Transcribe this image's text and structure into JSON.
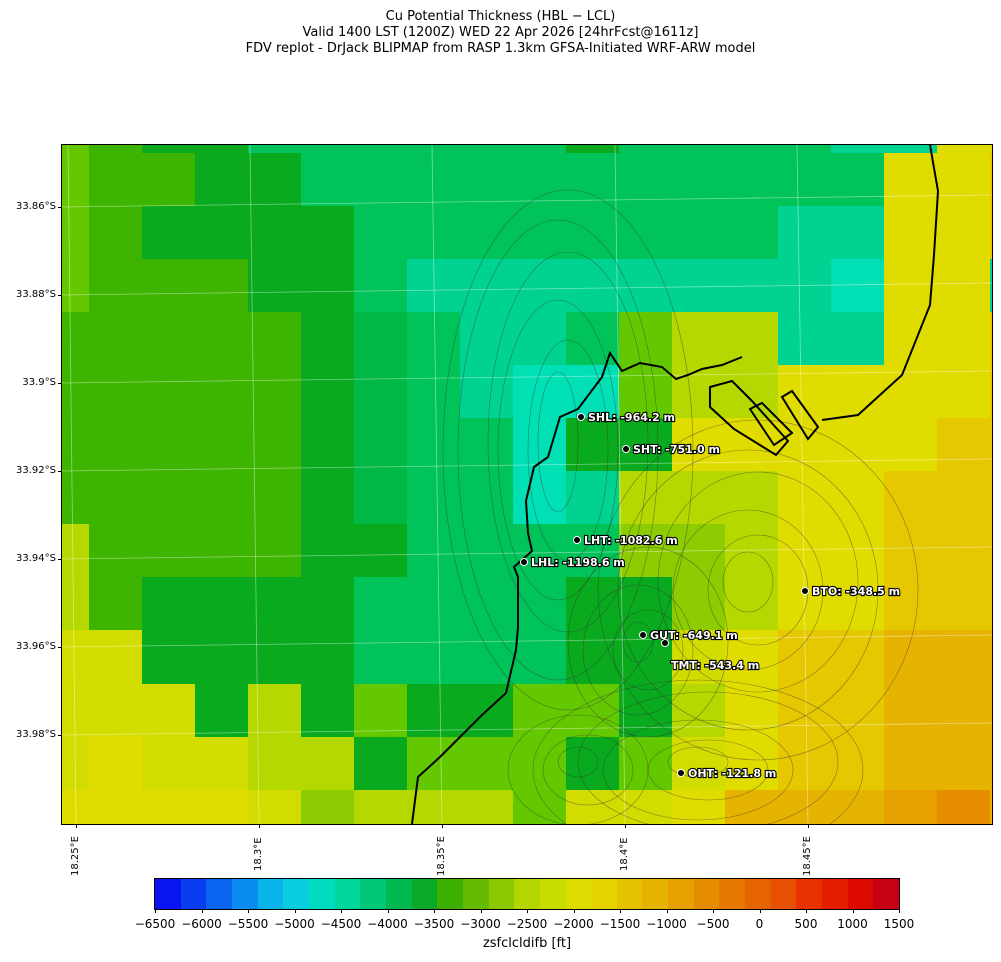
{
  "header": {
    "line1": "Cu Potential Thickness (HBL − LCL)",
    "line2": "Valid 1400 LST (1200Z) WED 22 Apr 2026 [24hrFcst@1611z]",
    "line3": "FDV replot - DrJack BLIPMAP from RASP 1.3km GFSA-Initiated WRF-ARW model"
  },
  "axes": {
    "lat_labels": [
      "33.86°S",
      "33.88°S",
      "33.9°S",
      "33.92°S",
      "33.94°S",
      "33.96°S",
      "33.98°S"
    ],
    "lon_labels": [
      "18.25°E",
      "18.3°E",
      "18.35°E",
      "18.4°E",
      "18.45°E"
    ]
  },
  "stations": [
    {
      "label": "SHL: -964.2 m"
    },
    {
      "label": "SHT: -751.0 m"
    },
    {
      "label": "LHT: -1082.6 m"
    },
    {
      "label": "LHL: -1198.6 m"
    },
    {
      "label": "BTO: -348.5 m"
    },
    {
      "label": "GUT: -649.1 m"
    },
    {
      "label": "TMT: -543.4 m"
    },
    {
      "label": "OHT: -121.8 m"
    }
  ],
  "colorbar": {
    "label": "zsfclcldifb [ft]",
    "ticks": [
      "−6500",
      "−6000",
      "−5500",
      "−5000",
      "−4500",
      "−4000",
      "−3500",
      "−3000",
      "−2500",
      "−2000",
      "−1500",
      "−1000",
      "−500",
      "0",
      "500",
      "1000",
      "1500"
    ],
    "colors": [
      "#0a14f0",
      "#0a3cf0",
      "#0a64f0",
      "#0a8cf0",
      "#0ab4e8",
      "#0acde0",
      "#00dcc0",
      "#00d79a",
      "#00c878",
      "#00b850",
      "#0aaa28",
      "#3caf00",
      "#64bb00",
      "#8cc800",
      "#b4d600",
      "#c8dc00",
      "#dcdc00",
      "#e6d200",
      "#e6c300",
      "#e6b400",
      "#e6a000",
      "#e68c00",
      "#e67800",
      "#e66400",
      "#e65000",
      "#e63200",
      "#e61e00",
      "#dc0a00",
      "#c80014"
    ]
  },
  "map_data": {
    "grid_colors": [
      [
        "#64c800",
        "#3cb400",
        "#0aaa1e",
        "#0aaa1e",
        "#00c45a",
        "#00c45a",
        "#00c45a",
        "#00c45a",
        "#00c45a",
        "#00c45a",
        "#0aaa1e",
        "#00c45a",
        "#00c45a",
        "#00c45a",
        "#00c45a",
        "#00d291",
        "#00d291",
        "#e1dc00",
        "#e1dc00"
      ],
      [
        "#64c800",
        "#3cb400",
        "#3cb400",
        "#0aaa1e",
        "#0aaa1e",
        "#00c45a",
        "#00c45a",
        "#00c45a",
        "#00c45a",
        "#00c45a",
        "#00c45a",
        "#00c45a",
        "#00c45a",
        "#00c45a",
        "#00c45a",
        "#00c45a",
        "#e1dc00",
        "#e1dc00",
        "#e6c800"
      ],
      [
        "#64c800",
        "#3cb400",
        "#0aaa1e",
        "#0aaa1e",
        "#0aaa1e",
        "#0aaa1e",
        "#00c45a",
        "#00c45a",
        "#00c45a",
        "#00c45a",
        "#00c45a",
        "#00c45a",
        "#00c45a",
        "#00c45a",
        "#00d291",
        "#00d291",
        "#e1dc00",
        "#e1dc00",
        "#e6c800"
      ],
      [
        "#64c800",
        "#3cb400",
        "#3cb400",
        "#3cb400",
        "#0aaa1e",
        "#0aaa1e",
        "#00c45a",
        "#00d291",
        "#00d291",
        "#00d291",
        "#00d291",
        "#00d291",
        "#00d291",
        "#00d291",
        "#00d291",
        "#00e0b4",
        "#e1dc00",
        "#e1dc00",
        "#00d291"
      ],
      [
        "#3cb400",
        "#3cb400",
        "#3cb400",
        "#3cb400",
        "#3cb400",
        "#0aaa1e",
        "#00b846",
        "#00c45a",
        "#00d291",
        "#00d291",
        "#00c45a",
        "#64c800",
        "#b4d800",
        "#b4d800",
        "#00d291",
        "#00d291",
        "#e1dc00",
        "#e1dc00",
        "#e6c800"
      ],
      [
        "#3cb400",
        "#3cb400",
        "#3cb400",
        "#3cb400",
        "#3cb400",
        "#0aaa1e",
        "#00b846",
        "#00c45a",
        "#00d291",
        "#00e0b4",
        "#00e0b4",
        "#64c800",
        "#b4d800",
        "#b4d800",
        "#e1dc00",
        "#e1dc00",
        "#e1dc00",
        "#e1dc00",
        "#e6c800"
      ],
      [
        "#3cb400",
        "#3cb400",
        "#3cb400",
        "#3cb400",
        "#3cb400",
        "#0aaa1e",
        "#00b846",
        "#00c45a",
        "#00c45a",
        "#00e0b4",
        "#0aaa1e",
        "#0aaa1e",
        "#e1dc00",
        "#e1dc00",
        "#e1dc00",
        "#e1dc00",
        "#e1dc00",
        "#e6c800",
        "#e6c800"
      ],
      [
        "#3cb400",
        "#3cb400",
        "#3cb400",
        "#3cb400",
        "#3cb400",
        "#0aaa1e",
        "#00b846",
        "#00c45a",
        "#00c45a",
        "#00e0b4",
        "#00d291",
        "#b4d800",
        "#b4d800",
        "#b4d800",
        "#e1dc00",
        "#e1dc00",
        "#e6c800",
        "#e6c800",
        "#e6c800"
      ],
      [
        "#b4d800",
        "#3cb400",
        "#3cb400",
        "#3cb400",
        "#3cb400",
        "#0aaa1e",
        "#0aaa1e",
        "#00c45a",
        "#00c45a",
        "#00c45a",
        "#00c45a",
        "#8ccc00",
        "#8ccc00",
        "#b4d800",
        "#e1dc00",
        "#e1dc00",
        "#e6c800",
        "#e6c800",
        "#e6c800"
      ],
      [
        "#b4d800",
        "#3cb400",
        "#0aaa1e",
        "#0aaa1e",
        "#0aaa1e",
        "#0aaa1e",
        "#00c45a",
        "#00c45a",
        "#00c45a",
        "#00c45a",
        "#0aaa1e",
        "#0aaa1e",
        "#8ccc00",
        "#b4d800",
        "#e1dc00",
        "#e1dc00",
        "#e6c800",
        "#e6c800",
        "#e6c800"
      ],
      [
        "#d2dc00",
        "#d2dc00",
        "#0aaa1e",
        "#0aaa1e",
        "#0aaa1e",
        "#0aaa1e",
        "#00c45a",
        "#00c45a",
        "#00c45a",
        "#00c45a",
        "#0aaa1e",
        "#0aaa1e",
        "#d2dc00",
        "#e1dc00",
        "#e6c800",
        "#e6c800",
        "#e6b400",
        "#e6b400",
        "#e6b400"
      ],
      [
        "#d2dc00",
        "#d2dc00",
        "#d2dc00",
        "#0aaa1e",
        "#b4d800",
        "#0aaa1e",
        "#64c800",
        "#0aaa1e",
        "#0aaa1e",
        "#64c800",
        "#64c800",
        "#0aaa1e",
        "#b4d800",
        "#e1dc00",
        "#e6c800",
        "#e6c800",
        "#e6b400",
        "#e6b400",
        "#e6b400"
      ],
      [
        "#d2dc00",
        "#e1dc00",
        "#d2dc00",
        "#d2dc00",
        "#b4d800",
        "#b4d800",
        "#0aaa1e",
        "#64c800",
        "#64c800",
        "#64c800",
        "#0aaa1e",
        "#64c800",
        "#d2dc00",
        "#e1dc00",
        "#e6c800",
        "#e6c800",
        "#e6b400",
        "#e6b400",
        "#e6b400"
      ],
      [
        "#e1dc00",
        "#e1dc00",
        "#e1dc00",
        "#e1dc00",
        "#d2dc00",
        "#8ccc00",
        "#b4d800",
        "#b4d800",
        "#b4d800",
        "#64c800",
        "#d2dc00",
        "#d2dc00",
        "#e1dc00",
        "#e6b400",
        "#e6b400",
        "#e6b400",
        "#e6a000",
        "#e68c00",
        "#e6b400"
      ],
      [
        "#e1dc00",
        "#e1dc00",
        "#e1dc00",
        "#e1dc00",
        "#d2dc00",
        "#b4d800",
        "#8ccc00",
        "#b4d800",
        "#8ccc00",
        "#d2dc00",
        "#e1dc00",
        "#e6c800",
        "#e6b400",
        "#e6a000",
        "#e68c00",
        "#e68c00",
        "#e68c00",
        "#e68c00",
        "#e6b400"
      ],
      [
        "#e1dc00",
        "#e1dc00",
        "#e6c800",
        "#e6c800",
        "#e1dc00",
        "#e1dc00",
        "#b4d800",
        "#b4d800",
        "#b4d800",
        "#d2dc00",
        "#e6c800",
        "#e6b400",
        "#e6a000",
        "#e6780a",
        "#e6780a",
        "#e6780a",
        "#e6a000",
        "#e6b400",
        "#e6b400"
      ],
      [
        "#e1dc00",
        "#e1dc00",
        "#e1dc00",
        "#e6b400",
        "#e6c800",
        "#e1dc00",
        "#d2dc00",
        "#d2dc00",
        "#d2dc00",
        "#e6b400",
        "#e6b400",
        "#e6a000",
        "#e68c00",
        "#e6780a",
        "#e6780a",
        "#e6a000",
        "#e6b400",
        "#e6b400",
        "#e6b400"
      ]
    ]
  }
}
